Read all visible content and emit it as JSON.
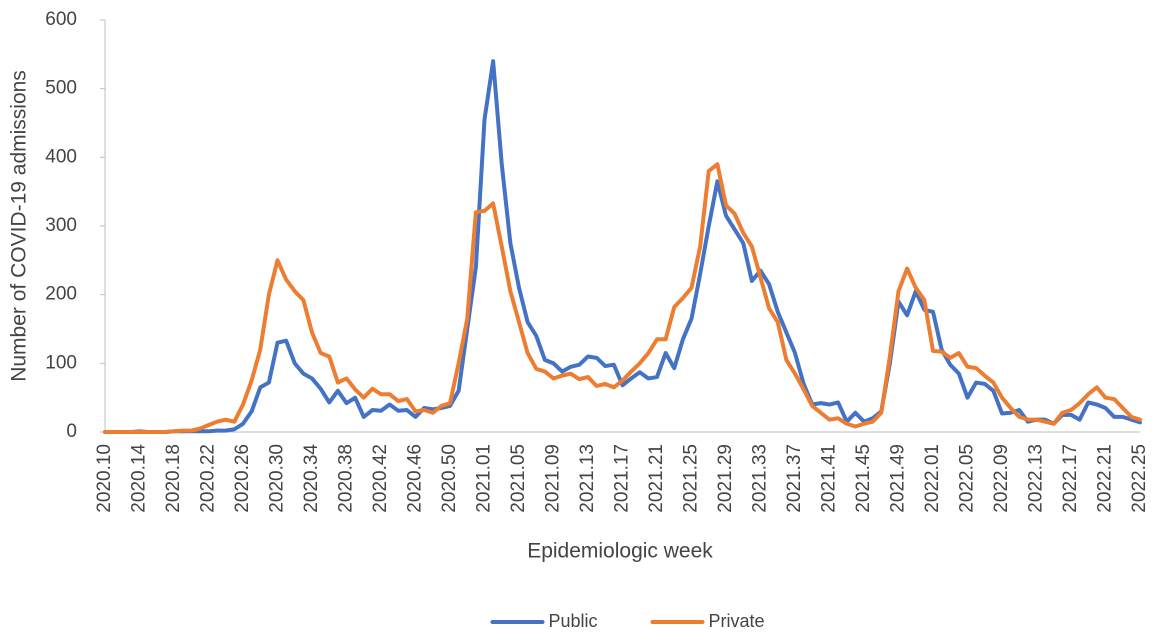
{
  "chart_data": {
    "type": "line",
    "x_label": "Epidemiologic week",
    "y_label": "Number of COVID-19 admissions",
    "categories": [
      "2020.10",
      null,
      null,
      null,
      "2020.14",
      null,
      null,
      null,
      "2020.18",
      null,
      null,
      null,
      "2020.22",
      null,
      null,
      null,
      "2020.26",
      null,
      null,
      null,
      "2020.30",
      null,
      null,
      null,
      "2020.34",
      null,
      null,
      null,
      "2020.38",
      null,
      null,
      null,
      "2020.42",
      null,
      null,
      null,
      "2020.46",
      null,
      null,
      null,
      "2020.50",
      null,
      null,
      null,
      "2021.01",
      null,
      null,
      null,
      "2021.05",
      null,
      null,
      null,
      "2021.09",
      null,
      null,
      null,
      "2021.13",
      null,
      null,
      null,
      "2021.17",
      null,
      null,
      null,
      "2021.21",
      null,
      null,
      null,
      "2021.25",
      null,
      null,
      null,
      "2021.29",
      null,
      null,
      null,
      "2021.33",
      null,
      null,
      null,
      "2021.37",
      null,
      null,
      null,
      "2021.41",
      null,
      null,
      null,
      "2021.45",
      null,
      null,
      null,
      "2021.49",
      null,
      null,
      null,
      "2022.01",
      null,
      null,
      null,
      "2022.05",
      null,
      null,
      null,
      "2022.09",
      null,
      null,
      null,
      "2022.13",
      null,
      null,
      null,
      "2022.17",
      null,
      null,
      null,
      "2022.21",
      null,
      null,
      null,
      "2022.25"
    ],
    "series": [
      {
        "name": "Public",
        "color": "#4472c4",
        "values": [
          0,
          0,
          0,
          0,
          1,
          0,
          0,
          0,
          1,
          1,
          1,
          1,
          1,
          2,
          2,
          4,
          12,
          30,
          65,
          72,
          130,
          133,
          100,
          85,
          78,
          63,
          43,
          60,
          42,
          50,
          22,
          32,
          31,
          40,
          31,
          32,
          22,
          35,
          33,
          35,
          38,
          60,
          150,
          240,
          455,
          540,
          390,
          275,
          210,
          160,
          140,
          105,
          100,
          88,
          95,
          98,
          110,
          108,
          96,
          98,
          68,
          78,
          87,
          78,
          80,
          115,
          93,
          135,
          165,
          230,
          300,
          365,
          315,
          295,
          275,
          220,
          235,
          215,
          175,
          145,
          115,
          70,
          40,
          42,
          40,
          43,
          15,
          28,
          15,
          20,
          30,
          100,
          190,
          170,
          205,
          178,
          175,
          120,
          98,
          85,
          50,
          72,
          70,
          60,
          27,
          28,
          32,
          15,
          18,
          18,
          12,
          25,
          25,
          18,
          43,
          40,
          35,
          22,
          22,
          18,
          14
        ]
      },
      {
        "name": "Private",
        "color": "#ed7d31",
        "values": [
          0,
          0,
          0,
          0,
          0,
          0,
          0,
          0,
          1,
          2,
          2,
          5,
          10,
          15,
          18,
          15,
          40,
          75,
          120,
          200,
          250,
          222,
          205,
          192,
          145,
          115,
          110,
          72,
          78,
          62,
          50,
          63,
          55,
          55,
          45,
          48,
          30,
          32,
          28,
          38,
          42,
          100,
          165,
          320,
          322,
          333,
          270,
          205,
          160,
          115,
          92,
          88,
          78,
          82,
          85,
          77,
          80,
          67,
          70,
          65,
          75,
          88,
          100,
          115,
          135,
          135,
          182,
          195,
          210,
          270,
          380,
          390,
          330,
          318,
          290,
          270,
          225,
          180,
          160,
          105,
          85,
          62,
          38,
          28,
          18,
          20,
          12,
          8,
          12,
          15,
          28,
          110,
          205,
          238,
          210,
          192,
          118,
          117,
          108,
          115,
          95,
          93,
          82,
          72,
          50,
          35,
          22,
          18,
          18,
          15,
          12,
          28,
          32,
          42,
          55,
          65,
          50,
          48,
          35,
          22,
          18
        ]
      }
    ],
    "ylim": [
      0,
      600
    ],
    "yticks": [
      0,
      100,
      200,
      300,
      400,
      500,
      600
    ],
    "grid": false,
    "legend": "bottom"
  }
}
